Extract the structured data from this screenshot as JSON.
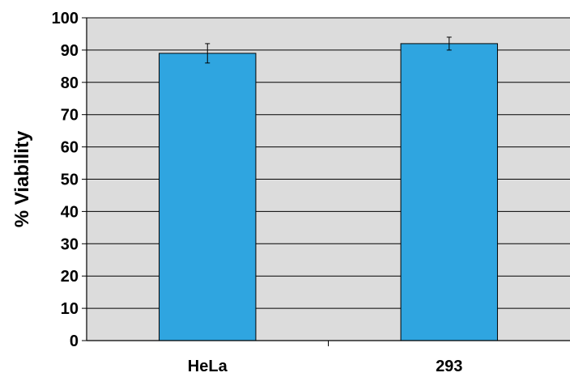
{
  "chart_data": {
    "type": "bar",
    "categories": [
      "HeLa",
      "293"
    ],
    "values": [
      89,
      92
    ],
    "error_low": [
      86,
      90
    ],
    "error_high": [
      92,
      94
    ],
    "ylabel": "% Viability",
    "xlabel": "",
    "ylim": [
      0,
      100
    ],
    "yticks": [
      0,
      10,
      20,
      30,
      40,
      50,
      60,
      70,
      80,
      90,
      100
    ],
    "grid": true,
    "colors": {
      "bar": "#2fa5e0",
      "plot_background": "#dcdcdc",
      "gridline": "#000000"
    }
  }
}
